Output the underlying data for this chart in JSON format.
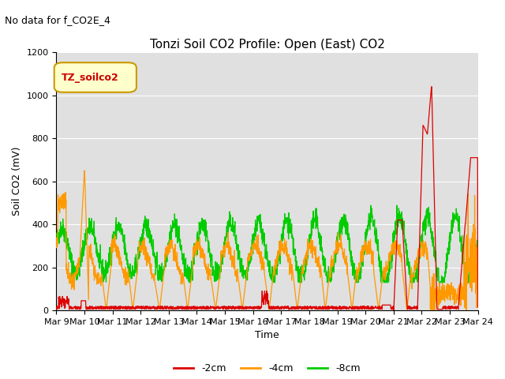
{
  "title": "Tonzi Soil CO2 Profile: Open (East) CO2",
  "subtitle": "No data for f_CO2E_4",
  "xlabel": "Time",
  "ylabel": "Soil CO2 (mV)",
  "ylim": [
    0,
    1200
  ],
  "background_color": "#ffffff",
  "plot_bg_color": "#e0e0e0",
  "grid_color": "#ffffff",
  "legend_label": "TZ_soilco2",
  "line_colors": {
    "2cm": "#dd0000",
    "4cm": "#ff9900",
    "8cm": "#00cc00"
  },
  "line_labels": {
    "2cm": "-2cm",
    "4cm": "-4cm",
    "8cm": "-8cm"
  },
  "xtick_labels": [
    "Mar 9",
    "Mar 10",
    "Mar 11",
    "Mar 12",
    "Mar 13",
    "Mar 14",
    "Mar 15",
    "Mar 16",
    "Mar 17",
    "Mar 18",
    "Mar 19",
    "Mar 20",
    "Mar 21",
    "Mar 22",
    "Mar 23",
    "Mar 24"
  ],
  "ytick_vals": [
    0,
    200,
    400,
    600,
    800,
    1000,
    1200
  ],
  "title_fontsize": 11,
  "axis_fontsize": 9,
  "tick_fontsize": 8,
  "legend_fontsize": 9
}
